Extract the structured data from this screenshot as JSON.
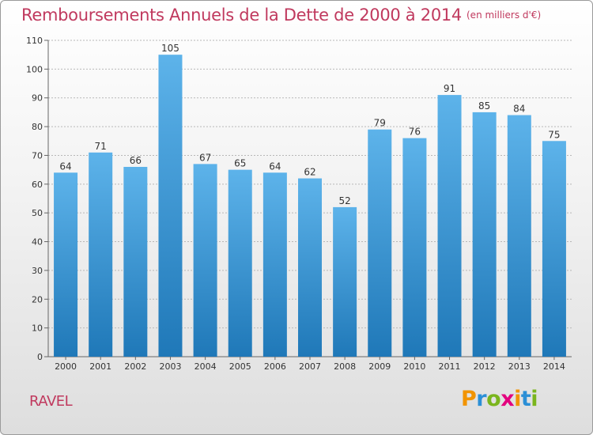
{
  "header": {
    "title": "Remboursements Annuels de la Dette de 2000 à 2014",
    "unit": "(en milliers d'€)"
  },
  "footer": {
    "commune": "RAVEL",
    "logo": {
      "text": "Proxiti",
      "letters": [
        "P",
        "r",
        "o",
        "x",
        "i",
        "t",
        "i"
      ],
      "colors": [
        "#f29400",
        "#2b8fd6",
        "#7ab51d",
        "#e3007e",
        "#f29400",
        "#2b8fd6",
        "#7ab51d"
      ]
    }
  },
  "colors": {
    "title": "#c0395e",
    "bar_top": "#5db3ea",
    "bar_bottom": "#1f78b8",
    "gridline": "#b8b8b8"
  },
  "chart_data": {
    "type": "bar",
    "title": "Remboursements Annuels de la Dette de 2000 à 2014",
    "subtitle": "(en milliers d'€)",
    "xlabel": "",
    "ylabel": "",
    "categories": [
      "2000",
      "2001",
      "2002",
      "2003",
      "2004",
      "2005",
      "2006",
      "2007",
      "2008",
      "2009",
      "2010",
      "2011",
      "2012",
      "2013",
      "2014"
    ],
    "values": [
      64,
      71,
      66,
      105,
      67,
      65,
      64,
      62,
      52,
      79,
      76,
      91,
      85,
      84,
      75
    ],
    "ylim": [
      0,
      110
    ],
    "yticks": [
      0,
      10,
      20,
      30,
      40,
      50,
      60,
      70,
      80,
      90,
      100,
      110
    ],
    "grid": true,
    "data_labels": true,
    "legend": "none"
  }
}
